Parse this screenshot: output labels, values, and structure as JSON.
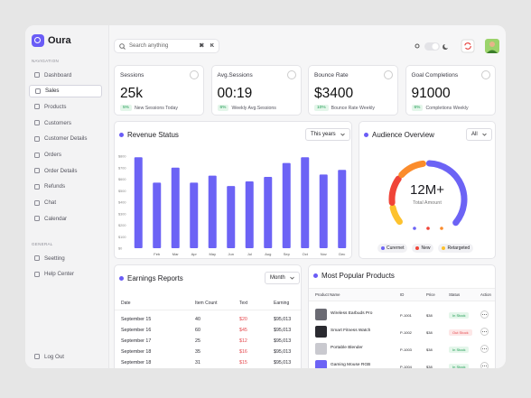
{
  "brand": "Oura",
  "search": {
    "placeholder": "Search anything",
    "keys": [
      "⌘",
      "K"
    ]
  },
  "sidebar": {
    "sections": [
      {
        "title": "NAVIGATION",
        "items": [
          "Dashboard",
          "Sales",
          "Products",
          "Customers",
          "Customer Details",
          "Orders",
          "Order Details",
          "Refunds",
          "Chat",
          "Calendar"
        ]
      },
      {
        "title": "GENERAL",
        "items": [
          "Seetting",
          "Help Center"
        ]
      }
    ],
    "active": 1,
    "logout": "Log Out"
  },
  "stats": [
    {
      "label": "Sessions",
      "value": "25k",
      "change": "5%",
      "note": "New Sessions Today"
    },
    {
      "label": "Avg.Sessions",
      "value": "00:19",
      "change": "6%",
      "note": "Weekly Avg.Sessions"
    },
    {
      "label": "Bounce Rate",
      "value": "$3400",
      "change": "10%",
      "note": "Bounce Rate Weekly"
    },
    {
      "label": "Goal Completions",
      "value": "91000",
      "change": "6%",
      "note": "Completions Weekly"
    }
  ],
  "chart_data": {
    "type": "bar",
    "title": "Revenue Status",
    "filter": "This years",
    "color": "#6c63f5",
    "categories": [
      null,
      "Feb",
      "Mar",
      "Apr",
      "May",
      "Jun",
      "Jul",
      "Aug",
      "Sep",
      "Oct",
      "Nov",
      "Dec"
    ],
    "values": [
      790,
      570,
      700,
      570,
      630,
      540,
      580,
      620,
      740,
      790,
      640,
      680
    ],
    "ylim": [
      0,
      800
    ],
    "yticks": [
      {
        "value": 0,
        "label": "$0"
      },
      {
        "value": 100,
        "label": "$100"
      },
      {
        "value": 200,
        "label": "$200"
      },
      {
        "value": 300,
        "label": "$300"
      },
      {
        "value": 400,
        "label": "$400"
      },
      {
        "value": 500,
        "label": "$500"
      },
      {
        "value": 600,
        "label": "$600"
      },
      {
        "value": 700,
        "label": "$700"
      },
      {
        "value": 800,
        "label": "$800"
      }
    ]
  },
  "audience": {
    "title": "Audience Overview",
    "filter": "All",
    "value": "12M+",
    "caption": "Total Amount",
    "legend": [
      {
        "name": "Curernet",
        "color": "#6c63f5"
      },
      {
        "name": "New",
        "color": "#f04438"
      },
      {
        "name": "Retargeted",
        "color": "#fdc22d"
      }
    ]
  },
  "earnings": {
    "title": "Earnings Reports",
    "filter": "Month",
    "columns": [
      "Date",
      "Item Count",
      "Text",
      "Earning"
    ],
    "rows": [
      [
        "September 15",
        "40",
        "$20",
        "$95,013"
      ],
      [
        "September 16",
        "60",
        "$45",
        "$95,013"
      ],
      [
        "September 17",
        "25",
        "$12",
        "$95,013"
      ],
      [
        "September 18",
        "35",
        "$16",
        "$95,013"
      ],
      [
        "September 18",
        "31",
        "$15",
        "$95,013"
      ]
    ]
  },
  "products": {
    "title": "Most Popular Products",
    "columns": [
      "Product Name",
      "ID",
      "Price",
      "Status",
      "Action"
    ],
    "rows": [
      {
        "name": "Wireless Earbuds Pro",
        "id": "P-1001",
        "price": "$38",
        "status": "In Stock"
      },
      {
        "name": "Smart Fitness Watch",
        "id": "P-1002",
        "price": "$38",
        "status": "Out Stock"
      },
      {
        "name": "Portable Blender",
        "id": "P-1003",
        "price": "$38",
        "status": "In Stock"
      },
      {
        "name": "Gaming Mouse RGB",
        "id": "P-1004",
        "price": "$38",
        "status": "In Stock"
      }
    ]
  }
}
